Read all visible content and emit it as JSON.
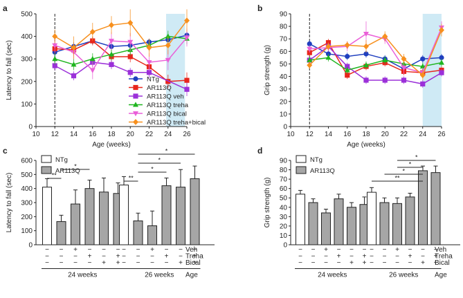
{
  "panels": {
    "a": "a",
    "b": "b",
    "c": "c",
    "d": "d"
  },
  "colors": {
    "NTg": "#1f3fbf",
    "AR113Q": "#e8261c",
    "AR113Q veh": "#9b30d9",
    "AR113Q treha": "#1fb51f",
    "AR113Q bical": "#ea5fd8",
    "AR113Q treha+bical": "#f7901e",
    "bar_ntg": "#ffffff",
    "bar_ar": "#a6a6a6",
    "shade": "#cfeaf5"
  },
  "chart_data": [
    {
      "id": "a",
      "type": "line",
      "xlabel": "Age (weeks)",
      "ylabel": "Latency to fall (sec)",
      "x": [
        12,
        14,
        16,
        18,
        20,
        22,
        24,
        26
      ],
      "xlim": [
        10,
        26
      ],
      "ylim": [
        0,
        500
      ],
      "xticks": [
        10,
        12,
        14,
        16,
        18,
        20,
        22,
        24,
        26
      ],
      "yticks": [
        0,
        100,
        200,
        300,
        400,
        500
      ],
      "shade_x": [
        23.8,
        25.8
      ],
      "vline_x": 12,
      "legend": [
        "NTg",
        "AR113Q",
        "AR113Q veh",
        "AR113Q treha",
        "AR113Q bical",
        "AR113Q treha+bical"
      ],
      "series": [
        {
          "name": "NTg",
          "marker": "circle",
          "values": [
            330,
            355,
            380,
            355,
            360,
            375,
            385,
            405
          ],
          "err": [
            20,
            20,
            15,
            20,
            20,
            15,
            20,
            15
          ]
        },
        {
          "name": "AR113Q",
          "marker": "square",
          "values": [
            345,
            340,
            380,
            310,
            310,
            265,
            200,
            205
          ],
          "err": [
            25,
            25,
            20,
            30,
            25,
            30,
            30,
            35
          ]
        },
        {
          "name": "AR113Q veh",
          "marker": "square",
          "values": [
            270,
            225,
            285,
            275,
            240,
            240,
            null,
            165
          ],
          "err": [
            20,
            20,
            20,
            20,
            20,
            25,
            null,
            30
          ]
        },
        {
          "name": "AR113Q treha",
          "marker": "triangle-up",
          "values": [
            300,
            275,
            300,
            320,
            340,
            360,
            400,
            390
          ],
          "err": [
            25,
            25,
            25,
            25,
            25,
            25,
            25,
            25
          ]
        },
        {
          "name": "AR113Q bical",
          "marker": "triangle-down",
          "values": [
            360,
            330,
            250,
            380,
            375,
            285,
            295,
            395
          ],
          "err": [
            30,
            30,
            40,
            40,
            40,
            40,
            45,
            40
          ]
        },
        {
          "name": "AR113Q treha+bical",
          "marker": "diamond",
          "values": [
            400,
            350,
            420,
            450,
            460,
            350,
            360,
            470
          ],
          "err": [
            30,
            50,
            40,
            40,
            60,
            40,
            40,
            50
          ]
        }
      ]
    },
    {
      "id": "b",
      "type": "line",
      "xlabel": "Age (weeks)",
      "ylabel": "Grip strength (g)",
      "x": [
        12,
        14,
        16,
        18,
        20,
        22,
        24,
        26
      ],
      "xlim": [
        10,
        26
      ],
      "ylim": [
        0,
        90
      ],
      "xticks": [
        10,
        12,
        14,
        16,
        18,
        20,
        22,
        24,
        26
      ],
      "yticks": [
        0,
        10,
        20,
        30,
        40,
        50,
        60,
        70,
        80,
        90
      ],
      "shade_x": [
        24,
        26
      ],
      "vline_x": 12,
      "series": [
        {
          "name": "NTg",
          "marker": "circle",
          "values": [
            66,
            58,
            56,
            58,
            54,
            46,
            54,
            55
          ],
          "err": [
            3,
            3,
            3,
            3,
            3,
            3,
            3,
            3
          ]
        },
        {
          "name": "AR113Q",
          "marker": "square",
          "values": [
            59,
            67,
            41,
            48,
            51,
            44,
            43,
            45
          ],
          "err": [
            3,
            3,
            3,
            3,
            3,
            3,
            3,
            3
          ]
        },
        {
          "name": "AR113Q veh",
          "marker": "square",
          "values": [
            53,
            64,
            48,
            37,
            37,
            37,
            34,
            43
          ],
          "err": [
            3,
            3,
            3,
            3,
            3,
            3,
            3,
            3
          ]
        },
        {
          "name": "AR113Q treha",
          "marker": "triangle-up",
          "values": [
            53,
            55,
            45,
            49,
            53,
            50,
            48,
            51
          ],
          "err": [
            3,
            3,
            3,
            3,
            3,
            3,
            3,
            3
          ]
        },
        {
          "name": "AR113Q bical",
          "marker": "triangle-down",
          "values": [
            62,
            63,
            64,
            74,
            70,
            47,
            43,
            79
          ],
          "err": [
            3,
            3,
            4,
            10,
            4,
            5,
            4,
            5
          ]
        },
        {
          "name": "AR113Q treha+bical",
          "marker": "diamond",
          "values": [
            49,
            64,
            65,
            64,
            72,
            54,
            41,
            77
          ],
          "err": [
            3,
            3,
            3,
            5,
            4,
            4,
            4,
            5
          ]
        }
      ]
    },
    {
      "id": "c",
      "type": "bar",
      "ylabel": "Latency to fall (sec)",
      "ylim": [
        0,
        600
      ],
      "yticks": [
        0,
        100,
        200,
        300,
        400,
        500,
        600
      ],
      "legend": [
        "NTg",
        "AR113Q"
      ],
      "groups": [
        {
          "label": "24 weeks",
          "values": [
            410,
            165,
            290,
            400,
            375,
            365
          ],
          "err": [
            60,
            45,
            100,
            60,
            100,
            75
          ]
        },
        {
          "label": "26 weeks",
          "values": [
            425,
            170,
            135,
            420,
            410,
            470
          ],
          "err": [
            60,
            55,
            105,
            55,
            125,
            90
          ]
        }
      ],
      "bar_kinds": [
        "NTg",
        "AR113Q",
        "AR113Q",
        "AR113Q",
        "AR113Q",
        "AR113Q"
      ],
      "signs": [
        {
          "label": "Veh",
          "values": [
            "−",
            "−",
            "+",
            "−",
            "−",
            "−"
          ]
        },
        {
          "label": "Treha",
          "values": [
            "−",
            "−",
            "−",
            "+",
            "−",
            "+"
          ]
        },
        {
          "label": "Bical",
          "values": [
            "−",
            "−",
            "−",
            "−",
            "+",
            "+"
          ]
        }
      ],
      "axis_label": "Age",
      "significance": [
        {
          "group": 0,
          "from": 0,
          "to": 1,
          "level": 0,
          "label": "**"
        },
        {
          "group": 0,
          "from": 1,
          "to": 3,
          "level": 1,
          "label": "*"
        },
        {
          "group": 1,
          "from": 0,
          "to": 1,
          "level": 0,
          "label": "**"
        },
        {
          "group": 1,
          "from": 1,
          "to": 3,
          "level": 1,
          "label": "*"
        },
        {
          "group": 1,
          "from": 1,
          "to": 4,
          "level": 2,
          "label": "*"
        },
        {
          "group": 1,
          "from": 1,
          "to": 5,
          "level": 3,
          "label": "*"
        }
      ]
    },
    {
      "id": "d",
      "type": "bar",
      "ylabel": "Grip strength (g)",
      "ylim": [
        0,
        90
      ],
      "yticks": [
        0,
        10,
        20,
        30,
        40,
        50,
        60,
        70,
        80,
        90
      ],
      "legend": [
        "NTg",
        "AR113Q"
      ],
      "groups": [
        {
          "label": "24 weeks",
          "values": [
            54,
            45,
            34,
            49,
            40,
            43
          ],
          "err": [
            4,
            4,
            4,
            5,
            5,
            8
          ]
        },
        {
          "label": "26 weeks",
          "values": [
            56,
            45,
            44,
            51,
            79,
            77
          ],
          "err": [
            5,
            5,
            6,
            4,
            5,
            7
          ]
        }
      ],
      "bar_kinds": [
        "NTg",
        "AR113Q",
        "AR113Q",
        "AR113Q",
        "AR113Q",
        "AR113Q"
      ],
      "signs": [
        {
          "label": "Veh",
          "values": [
            "−",
            "−",
            "+",
            "−",
            "−",
            "−"
          ]
        },
        {
          "label": "Treha",
          "values": [
            "−",
            "−",
            "−",
            "+",
            "−",
            "+"
          ]
        },
        {
          "label": "Bical",
          "values": [
            "−",
            "−",
            "−",
            "−",
            "+",
            "+"
          ]
        }
      ],
      "axis_label": "Age",
      "significance": [
        {
          "group": 1,
          "from": 0,
          "to": 4,
          "level": 0,
          "label": "**"
        },
        {
          "group": 1,
          "from": 1,
          "to": 4,
          "level": 1,
          "label": "*"
        },
        {
          "group": 1,
          "from": 2,
          "to": 4,
          "level": 2,
          "label": "*"
        },
        {
          "group": 1,
          "from": 2,
          "to": 5,
          "level": 3,
          "label": "*"
        }
      ]
    }
  ]
}
